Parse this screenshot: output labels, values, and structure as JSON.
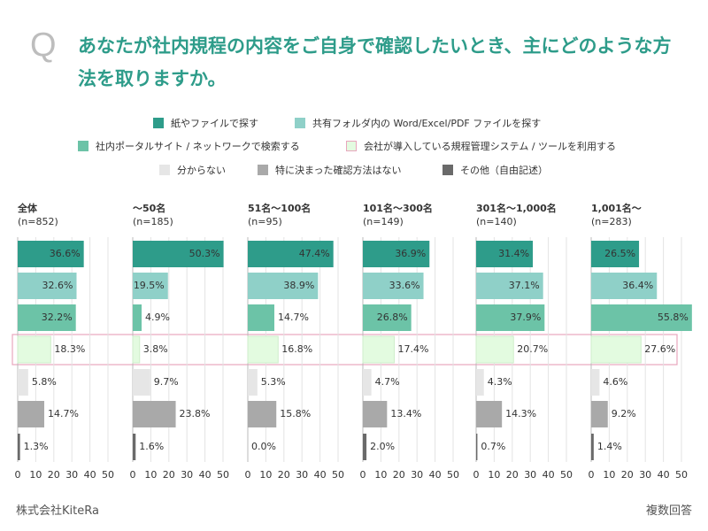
{
  "question": {
    "mark": "Q",
    "text": "あなたが社内規程の内容をご自身で確認したいとき、主にどのような方法を取りますか。"
  },
  "legend": [
    {
      "name": "紙やファイルで探す",
      "color": "#2e9c8a"
    },
    {
      "name": "共有フォルダ内の Word/Excel/PDF ファイルを探す",
      "color": "#8fd0c8"
    },
    {
      "name": "社内ポータルサイト / ネットワークで検索する",
      "color": "#6cc3a7"
    },
    {
      "name": "会社が導入している規程管理システム / ツールを利用する",
      "color": "#e3fbe0"
    },
    {
      "name": "分からない",
      "color": "#e6e6e6"
    },
    {
      "name": "特に決まった確認方法はない",
      "color": "#a9a9a9"
    },
    {
      "name": "その他（自由記述）",
      "color": "#6a6a6a"
    }
  ],
  "chart_data": [
    {
      "type": "bar",
      "title": "全体",
      "subtitle": "(n=852)",
      "values": [
        36.6,
        32.6,
        32.2,
        18.3,
        5.8,
        14.7,
        1.3
      ],
      "value_labels": [
        "36.6%",
        "32.6%",
        "32.2%",
        "18.3%",
        "5.8%",
        "14.7%",
        "1.3%"
      ],
      "xlim": [
        0,
        50
      ],
      "xticks": [
        0,
        10,
        20,
        30,
        40,
        50
      ]
    },
    {
      "type": "bar",
      "title": "～50名",
      "subtitle": "(n=185)",
      "values": [
        50.3,
        19.5,
        4.9,
        3.8,
        9.7,
        23.8,
        1.6
      ],
      "value_labels": [
        "50.3%",
        "19.5%",
        "4.9%",
        "3.8%",
        "9.7%",
        "23.8%",
        "1.6%"
      ],
      "xlim": [
        0,
        50
      ],
      "xticks": [
        0,
        10,
        20,
        30,
        40,
        50
      ]
    },
    {
      "type": "bar",
      "title": "51名～100名",
      "subtitle": "(n=95)",
      "values": [
        47.4,
        38.9,
        14.7,
        16.8,
        5.3,
        15.8,
        0.0
      ],
      "value_labels": [
        "47.4%",
        "38.9%",
        "14.7%",
        "16.8%",
        "5.3%",
        "15.8%",
        "0.0%"
      ],
      "xlim": [
        0,
        50
      ],
      "xticks": [
        0,
        10,
        20,
        30,
        40,
        50
      ]
    },
    {
      "type": "bar",
      "title": "101名～300名",
      "subtitle": "(n=149)",
      "values": [
        36.9,
        33.6,
        26.8,
        17.4,
        4.7,
        13.4,
        2.0
      ],
      "value_labels": [
        "36.9%",
        "33.6%",
        "26.8%",
        "17.4%",
        "4.7%",
        "13.4%",
        "2.0%"
      ],
      "xlim": [
        0,
        50
      ],
      "xticks": [
        0,
        10,
        20,
        30,
        40,
        50
      ]
    },
    {
      "type": "bar",
      "title": "301名～1,000名",
      "subtitle": "(n=140)",
      "values": [
        31.4,
        37.1,
        37.9,
        20.7,
        4.3,
        14.3,
        0.7
      ],
      "value_labels": [
        "31.4%",
        "37.1%",
        "37.9%",
        "20.7%",
        "4.3%",
        "14.3%",
        "0.7%"
      ],
      "xlim": [
        0,
        50
      ],
      "xticks": [
        0,
        10,
        20,
        30,
        40,
        50
      ]
    },
    {
      "type": "bar",
      "title": "1,001名～",
      "subtitle": "(n=283)",
      "values": [
        26.5,
        36.4,
        55.8,
        27.6,
        4.6,
        9.2,
        1.4
      ],
      "value_labels": [
        "26.5%",
        "36.4%",
        "55.8%",
        "27.6%",
        "4.6%",
        "9.2%",
        "1.4%"
      ],
      "xlim": [
        0,
        50
      ],
      "xticks": [
        0,
        10,
        20,
        30,
        40,
        50
      ]
    }
  ],
  "footer": {
    "company": "株式会社KiteRa",
    "note": "複数回答"
  }
}
